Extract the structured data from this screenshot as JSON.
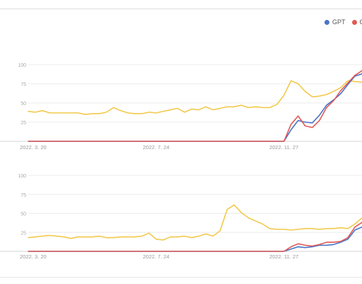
{
  "legend": [
    {
      "name": "GPT",
      "color": "#4a74c9"
    },
    {
      "name": "C",
      "color": "#e05a55"
    }
  ],
  "chart_data": [
    {
      "type": "line",
      "x": [
        "2022-03-20",
        "2022-03-27",
        "2022-04-03",
        "2022-04-10",
        "2022-04-17",
        "2022-04-24",
        "2022-05-01",
        "2022-05-08",
        "2022-05-15",
        "2022-05-22",
        "2022-05-29",
        "2022-06-05",
        "2022-06-12",
        "2022-06-19",
        "2022-06-26",
        "2022-07-03",
        "2022-07-10",
        "2022-07-17",
        "2022-07-24",
        "2022-07-31",
        "2022-08-07",
        "2022-08-14",
        "2022-08-21",
        "2022-08-28",
        "2022-09-04",
        "2022-09-11",
        "2022-09-18",
        "2022-09-25",
        "2022-10-02",
        "2022-10-09",
        "2022-10-16",
        "2022-10-23",
        "2022-10-30",
        "2022-11-06",
        "2022-11-13",
        "2022-11-20",
        "2022-11-27",
        "2022-12-04",
        "2022-12-11",
        "2022-12-18",
        "2022-12-25",
        "2023-01-01",
        "2023-01-08",
        "2023-01-15",
        "2023-01-22",
        "2023-01-29",
        "2023-02-05",
        "2023-02-12"
      ],
      "x_ticks": [
        "2022. 3. 20",
        "2022. 7. 24",
        "2022. 11. 27"
      ],
      "y_ticks": [
        "25",
        "50",
        "75",
        "100"
      ],
      "ylim": [
        0,
        100
      ],
      "grid": true,
      "series": [
        {
          "color": "#f2c94c",
          "values": [
            39,
            38,
            40,
            37,
            37,
            37,
            37,
            37,
            35,
            36,
            36,
            38,
            44,
            40,
            37,
            36,
            36,
            38,
            37,
            39,
            41,
            43,
            38,
            42,
            41,
            45,
            41,
            43,
            45,
            45,
            47,
            44,
            45,
            44,
            44,
            48,
            60,
            79,
            75,
            65,
            58,
            59,
            61,
            65,
            70,
            79,
            78,
            77
          ]
        },
        {
          "color": "#4a74c9",
          "values": [
            0,
            0,
            0,
            0,
            0,
            0,
            0,
            0,
            0,
            0,
            0,
            0,
            0,
            0,
            0,
            0,
            0,
            0,
            0,
            0,
            0,
            0,
            0,
            0,
            0,
            0,
            0,
            0,
            0,
            0,
            0,
            0,
            0,
            0,
            0,
            0,
            0,
            15,
            27,
            25,
            24,
            34,
            47,
            54,
            62,
            74,
            85,
            88
          ]
        },
        {
          "color": "#e05a55",
          "values": [
            0,
            0,
            0,
            0,
            0,
            0,
            0,
            0,
            0,
            0,
            0,
            0,
            0,
            0,
            0,
            0,
            0,
            0,
            0,
            0,
            0,
            0,
            0,
            0,
            0,
            0,
            0,
            0,
            0,
            0,
            0,
            0,
            0,
            0,
            0,
            0,
            0,
            22,
            33,
            20,
            18,
            27,
            44,
            53,
            66,
            76,
            86,
            92
          ]
        }
      ]
    },
    {
      "type": "line",
      "x": [
        "2022-03-20",
        "2022-03-27",
        "2022-04-03",
        "2022-04-10",
        "2022-04-17",
        "2022-04-24",
        "2022-05-01",
        "2022-05-08",
        "2022-05-15",
        "2022-05-22",
        "2022-05-29",
        "2022-06-05",
        "2022-06-12",
        "2022-06-19",
        "2022-06-26",
        "2022-07-03",
        "2022-07-10",
        "2022-07-17",
        "2022-07-24",
        "2022-07-31",
        "2022-08-07",
        "2022-08-14",
        "2022-08-21",
        "2022-08-28",
        "2022-09-04",
        "2022-09-11",
        "2022-09-18",
        "2022-09-25",
        "2022-10-02",
        "2022-10-09",
        "2022-10-16",
        "2022-10-23",
        "2022-10-30",
        "2022-11-06",
        "2022-11-13",
        "2022-11-20",
        "2022-11-27",
        "2022-12-04",
        "2022-12-11",
        "2022-12-18",
        "2022-12-25",
        "2023-01-01",
        "2023-01-08",
        "2023-01-15",
        "2023-01-22",
        "2023-01-29",
        "2023-02-05",
        "2023-02-12"
      ],
      "x_ticks": [
        "2022. 3. 20",
        "2022. 7. 24",
        "2022. 11. 27"
      ],
      "y_ticks": [
        "25",
        "50",
        "75",
        "100"
      ],
      "ylim": [
        0,
        100
      ],
      "grid": true,
      "series": [
        {
          "color": "#f2c94c",
          "values": [
            18,
            19,
            20,
            21,
            20,
            19,
            17,
            19,
            19,
            19,
            20,
            18,
            18,
            19,
            19,
            19,
            20,
            24,
            16,
            15,
            19,
            19,
            20,
            18,
            20,
            23,
            20,
            27,
            55,
            61,
            51,
            44,
            40,
            36,
            30,
            29,
            29,
            28,
            29,
            30,
            30,
            29,
            30,
            30,
            31,
            30,
            36,
            44
          ]
        },
        {
          "color": "#4a74c9",
          "values": [
            0,
            0,
            0,
            0,
            0,
            0,
            0,
            0,
            0,
            0,
            0,
            0,
            0,
            0,
            0,
            0,
            0,
            0,
            0,
            0,
            0,
            0,
            0,
            0,
            0,
            0,
            0,
            0,
            0,
            0,
            0,
            0,
            0,
            0,
            0,
            0,
            0,
            3,
            6,
            5,
            6,
            8,
            8,
            9,
            12,
            16,
            28,
            32
          ]
        },
        {
          "color": "#e05a55",
          "values": [
            0,
            0,
            0,
            0,
            0,
            0,
            0,
            0,
            0,
            0,
            0,
            0,
            0,
            0,
            0,
            0,
            0,
            0,
            0,
            0,
            0,
            0,
            0,
            0,
            0,
            0,
            0,
            0,
            0,
            0,
            0,
            0,
            0,
            0,
            0,
            0,
            0,
            6,
            10,
            8,
            7,
            9,
            12,
            12,
            13,
            18,
            32,
            38
          ]
        }
      ]
    }
  ]
}
